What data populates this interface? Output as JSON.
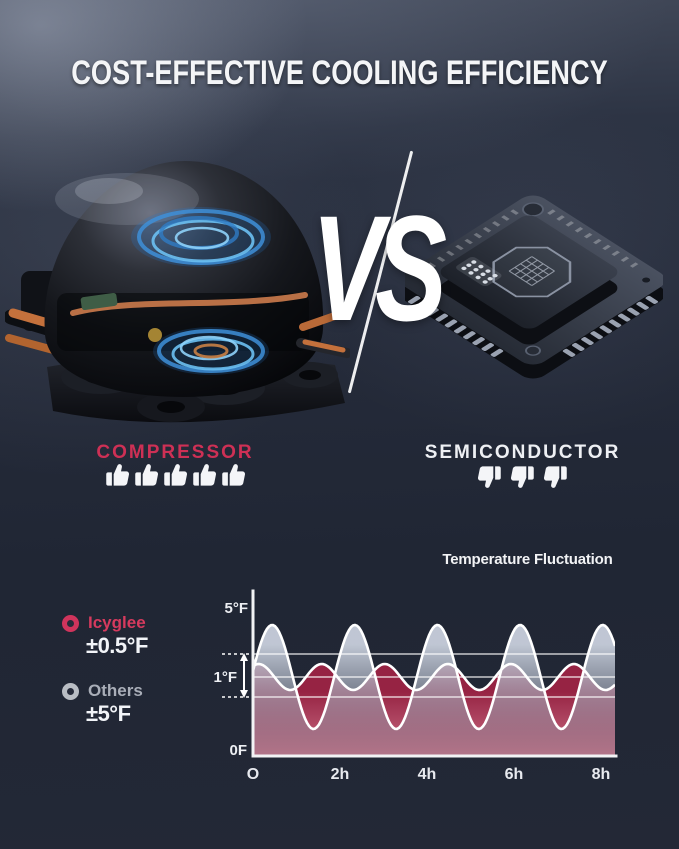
{
  "title": "COST-EFFECTIVE COOLING EFFICIENCY",
  "vs": {
    "label": "VS"
  },
  "comparison": {
    "left": {
      "label": "COMPRESSOR",
      "illustration": "compressor-photo",
      "rating_icon": "thumb-up-icon",
      "rating_count": 5
    },
    "right": {
      "label": "SEMICONDUCTOR",
      "illustration": "semiconductor-chip-photo",
      "rating_icon": "thumb-down-icon",
      "rating_count": 3
    }
  },
  "legend": {
    "items": [
      {
        "name": "Icyglee",
        "value": "±0.5°F",
        "color": "#d0345c",
        "text_color": "#d63a5e"
      },
      {
        "name": "Others",
        "value": "±5°F",
        "color": "#b9bdc4",
        "text_color": "#a9aeb8"
      }
    ]
  },
  "chart_data": {
    "type": "area",
    "title": "Temperature Fluctuation",
    "x_ticks": [
      "O",
      "2h",
      "4h",
      "6h",
      "8h"
    ],
    "x_ticks_hours": [
      0,
      2,
      4,
      6,
      8
    ],
    "x_range_hours": [
      0,
      8.3
    ],
    "y_ticks": [
      "5°F",
      "1°F",
      "0F"
    ],
    "setpoint_f": 1,
    "band_label": "1°F",
    "band_range_f": [
      0.5,
      1.5
    ],
    "grid": true,
    "legend_position": "left",
    "series": [
      {
        "name": "Icyglee",
        "fluctuation": "±0.5°F",
        "amplitude_f": 0.5,
        "period_h": 1.45,
        "phase_h": 0.13,
        "color": "#9e2746"
      },
      {
        "name": "Others",
        "fluctuation": "±5°F",
        "amplitude_f": 5,
        "period_h": 1.9,
        "phase_h": 0.44,
        "color": "#aab3c2"
      }
    ]
  },
  "colors": {
    "background": "#232836",
    "accent_red": "#d23458",
    "title_text": "#f4f5f7",
    "icyglee_fill": "#9e2746",
    "others_fill": "#aab3c2",
    "axis": "#f2f3f5"
  }
}
